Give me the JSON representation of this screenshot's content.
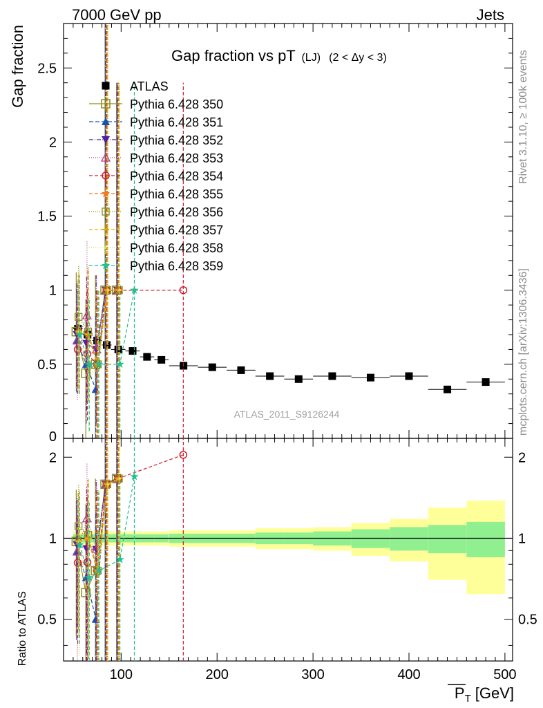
{
  "header": {
    "left": "7000 GeV pp",
    "right": "Jets"
  },
  "side_labels": {
    "rivet": "Rivet 3.1.10, ≥ 100k events",
    "mcplots": "mcplots.cern.ch [arXiv:1306.3436]"
  },
  "watermark": "ATLAS_2011_S9126244",
  "chart_data": {
    "type": "scatter",
    "title": "Gap fraction vs pT",
    "title_sub": "(LJ)",
    "title_cut": "(2 < Δy < 3)",
    "ylabel": "Gap fraction",
    "ratio_ylabel": "Ratio to ATLAS",
    "xlabel_main": "P",
    "xlabel_sub": "T",
    "xlabel_unit": "[GeV]",
    "xlim": [
      40,
      508
    ],
    "ylim": [
      0,
      2.8
    ],
    "ratio_ylim": [
      0.35,
      2.35
    ],
    "ratio_log_scale": true,
    "x_ticks": [
      "100",
      "200",
      "300",
      "400",
      "500"
    ],
    "y_ticks": [
      "0.5",
      "1",
      "1.5",
      "2",
      "2.5"
    ],
    "y_tick_zero": "0",
    "ratio_ticks": [
      "0.5",
      "1",
      "2"
    ],
    "legend_position": "top-left",
    "reference": {
      "name": "ATLAS",
      "color": "#000000",
      "x": [
        55,
        65,
        75,
        85,
        97,
        112,
        127,
        142,
        165,
        195,
        225,
        255,
        285,
        320,
        360,
        400,
        440,
        480
      ],
      "y": [
        0.74,
        0.7,
        0.66,
        0.63,
        0.6,
        0.59,
        0.55,
        0.53,
        0.49,
        0.48,
        0.46,
        0.42,
        0.4,
        0.42,
        0.41,
        0.42,
        0.33,
        0.38
      ],
      "xerr": [
        5,
        5,
        5,
        5,
        7.5,
        7.5,
        7.5,
        7.5,
        15,
        15,
        15,
        15,
        15,
        20,
        20,
        20,
        20,
        20
      ],
      "band_inner": [
        0.035,
        0.035,
        0.035,
        0.035,
        0.035,
        0.035,
        0.035,
        0.035,
        0.04,
        0.04,
        0.04,
        0.05,
        0.05,
        0.06,
        0.08,
        0.1,
        0.12,
        0.15
      ],
      "band_outer": [
        0.06,
        0.06,
        0.06,
        0.06,
        0.06,
        0.06,
        0.06,
        0.06,
        0.07,
        0.07,
        0.07,
        0.09,
        0.09,
        0.1,
        0.14,
        0.18,
        0.3,
        0.38
      ]
    },
    "series": [
      {
        "name": "Pythia 6.428 350",
        "color": "#8c8c1f",
        "dash": "",
        "marker": "square-open",
        "x": [
          55,
          65,
          75,
          85,
          97
        ],
        "y": [
          0.72,
          0.44,
          0.5,
          1.0,
          1.0
        ],
        "yerr": [
          0.4,
          0.5,
          0.6,
          1.8,
          1.4
        ]
      },
      {
        "name": "Pythia 6.428 351",
        "color": "#1850b4",
        "dash": "6,3",
        "marker": "triangle-up",
        "x": [
          55,
          65,
          75,
          85,
          97
        ],
        "y": [
          0.66,
          0.5,
          0.33,
          1.0,
          1.0
        ],
        "yerr": [
          0.35,
          0.4,
          0.5,
          1.8,
          1.4
        ]
      },
      {
        "name": "Pythia 6.428 352",
        "color": "#5020a0",
        "dash": "6,2,1,2",
        "marker": "triangle-down",
        "x": [
          55,
          65,
          75,
          85,
          97
        ],
        "y": [
          0.7,
          0.64,
          0.6,
          1.0,
          1.0
        ],
        "yerr": [
          0.35,
          0.45,
          0.5,
          1.8,
          1.4
        ]
      },
      {
        "name": "Pythia 6.428 353",
        "color": "#b43c8c",
        "dash": "1,2",
        "marker": "triangle-up-open",
        "x": [
          55,
          65,
          75,
          85,
          97
        ],
        "y": [
          0.66,
          0.83,
          0.6,
          1.0,
          1.0
        ],
        "yerr": [
          0.4,
          0.5,
          0.5,
          1.8,
          1.4
        ]
      },
      {
        "name": "Pythia 6.428 354",
        "color": "#d01c2c",
        "dash": "5,3",
        "marker": "circle-open",
        "x": [
          55,
          65,
          75,
          85,
          97,
          165
        ],
        "y": [
          0.6,
          0.57,
          0.5,
          1.0,
          1.0,
          1.0
        ],
        "yerr": [
          0.3,
          0.45,
          0.5,
          1.8,
          1.4,
          1.4
        ]
      },
      {
        "name": "Pythia 6.428 355",
        "color": "#f07820",
        "dash": "5,3",
        "marker": "star",
        "x": [
          55,
          65,
          75,
          85,
          97
        ],
        "y": [
          0.72,
          0.7,
          0.5,
          1.0,
          1.0
        ],
        "yerr": [
          0.38,
          0.45,
          0.5,
          1.8,
          1.4
        ]
      },
      {
        "name": "Pythia 6.428 356",
        "color": "#8c8c1f",
        "dash": "1,2",
        "marker": "square-open-small",
        "x": [
          55,
          65,
          75,
          85,
          97
        ],
        "y": [
          0.82,
          0.72,
          0.5,
          1.0,
          1.0
        ],
        "yerr": [
          0.35,
          0.45,
          0.5,
          1.8,
          1.4
        ]
      },
      {
        "name": "Pythia 6.428 357",
        "color": "#e0b000",
        "dash": "5,3",
        "marker": "dash",
        "x": [
          55,
          65,
          75,
          85,
          97
        ],
        "y": [
          0.72,
          0.7,
          0.5,
          1.0,
          1.0
        ],
        "yerr": [
          0.4,
          0.45,
          0.5,
          1.8,
          1.4
        ]
      },
      {
        "name": "Pythia 6.428 358",
        "color": "#d8e040",
        "dash": "1,2",
        "marker": "dot",
        "x": [
          55,
          65,
          75,
          85,
          97
        ],
        "y": [
          0.72,
          0.4,
          0.5,
          1.0,
          1.0
        ],
        "yerr": [
          0.45,
          0.5,
          0.5,
          1.8,
          1.4
        ]
      },
      {
        "name": "Pythia 6.428 359",
        "color": "#20c090",
        "dash": "5,3",
        "marker": "star-filled",
        "x": [
          55,
          65,
          75,
          97,
          112
        ],
        "y": [
          0.7,
          0.5,
          0.5,
          0.5,
          1.0
        ],
        "yerr": [
          0.4,
          0.45,
          0.5,
          0.5,
          1.4
        ]
      }
    ]
  }
}
